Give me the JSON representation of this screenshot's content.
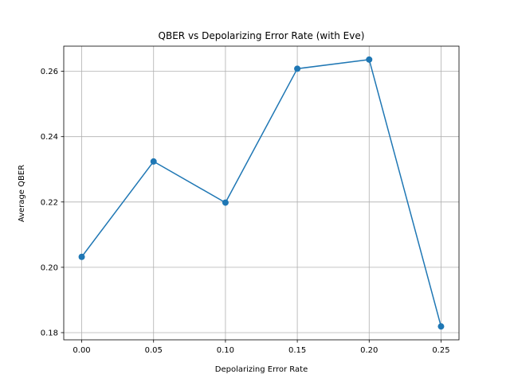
{
  "chart_data": {
    "type": "line",
    "title": "QBER vs Depolarizing Error Rate (with Eve)",
    "xlabel": "Depolarizing Error Rate",
    "ylabel": "Average QBER",
    "x": [
      0.0,
      0.05,
      0.1,
      0.15,
      0.2,
      0.25
    ],
    "series": [
      {
        "values": [
          0.2032,
          0.2324,
          0.2198,
          0.2608,
          0.2636,
          0.1819
        ],
        "color": "#1f77b4"
      }
    ],
    "xlim": [
      -0.0125,
      0.2625
    ],
    "ylim": [
      0.1778,
      0.2677
    ],
    "xticks": [
      0.0,
      0.05,
      0.1,
      0.15,
      0.2,
      0.25
    ],
    "xtick_labels": [
      "0.00",
      "0.05",
      "0.10",
      "0.15",
      "0.20",
      "0.25"
    ],
    "yticks": [
      0.18,
      0.2,
      0.22,
      0.24,
      0.26
    ],
    "ytick_labels": [
      "0.18",
      "0.20",
      "0.22",
      "0.24",
      "0.26"
    ],
    "grid": true,
    "marker": "circle"
  }
}
